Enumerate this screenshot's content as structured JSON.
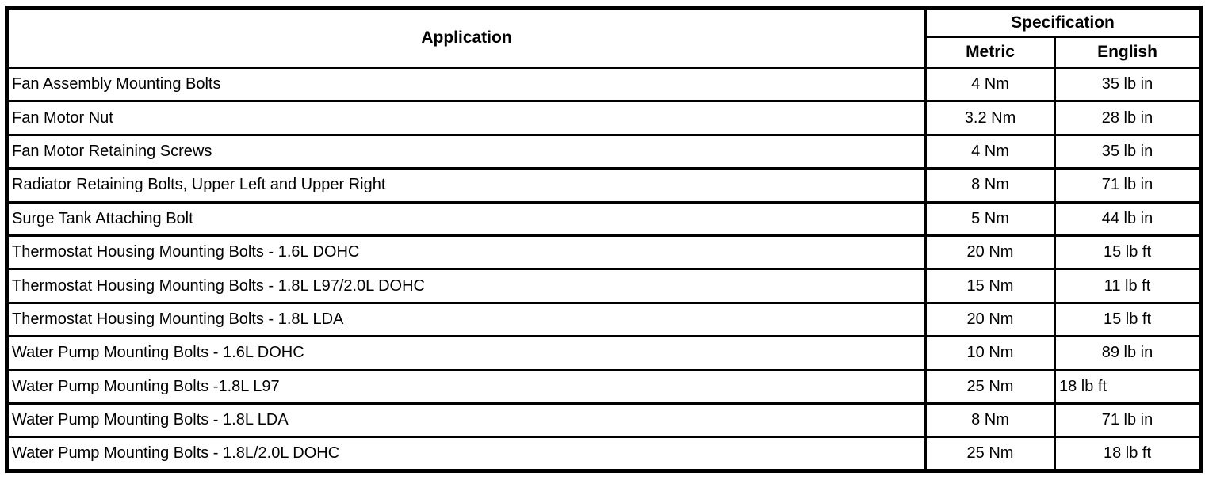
{
  "page": {
    "background_color": "#ffffff",
    "text_color": "#000000",
    "border_color": "#000000"
  },
  "table": {
    "columns": {
      "application": "Application",
      "specification": "Specification",
      "metric": "Metric",
      "english": "English"
    },
    "rows": [
      {
        "application": "Fan Assembly Mounting Bolts",
        "metric": "4 Nm",
        "english": "35 lb in"
      },
      {
        "application": "Fan Motor Nut",
        "metric": "3.2 Nm",
        "english": "28 lb in"
      },
      {
        "application": "Fan Motor Retaining Screws",
        "metric": "4 Nm",
        "english": "35 lb in"
      },
      {
        "application": "Radiator Retaining Bolts, Upper Left and Upper Right",
        "metric": "8 Nm",
        "english": "71 lb in"
      },
      {
        "application": "Surge Tank Attaching Bolt",
        "metric": "5 Nm",
        "english": "44 lb in"
      },
      {
        "application": "Thermostat Housing Mounting Bolts - 1.6L DOHC",
        "metric": "20 Nm",
        "english": "15 lb ft"
      },
      {
        "application": "Thermostat Housing Mounting Bolts - 1.8L L97/2.0L DOHC",
        "metric": "15 Nm",
        "english": "11 lb ft"
      },
      {
        "application": "Thermostat Housing Mounting Bolts - 1.8L LDA",
        "metric": "20 Nm",
        "english": "15 lb ft"
      },
      {
        "application": "Water Pump Mounting Bolts - 1.6L DOHC",
        "metric": "10 Nm",
        "english": "89 lb in"
      },
      {
        "application": "Water Pump Mounting Bolts -1.8L L97",
        "metric": "25 Nm",
        "english": "18 lb ft",
        "english_align": "left"
      },
      {
        "application": "Water Pump Mounting Bolts - 1.8L LDA",
        "metric": "8 Nm",
        "english": "71 lb in"
      },
      {
        "application": "Water Pump Mounting Bolts - 1.8L/2.0L DOHC",
        "metric": "25 Nm",
        "english": "18 lb ft"
      }
    ]
  }
}
